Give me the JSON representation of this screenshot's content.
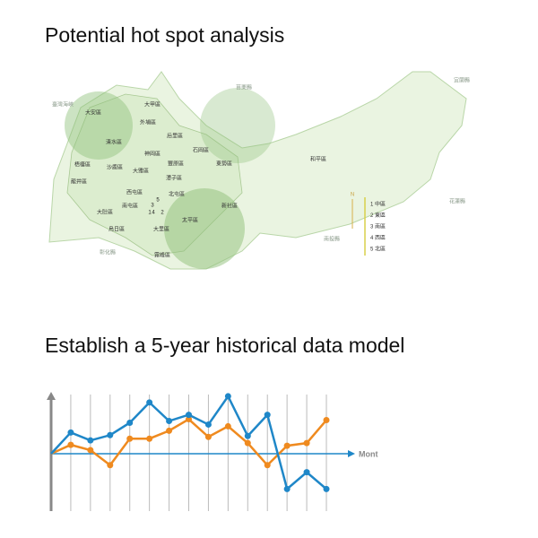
{
  "heading_map": "Potential hot spot analysis",
  "heading_chart": "Establish a 5-year historical data model",
  "map": {
    "districts": [
      "大甲區",
      "外埔區",
      "大安區",
      "后里區",
      "清水區",
      "神岡區",
      "梧棲區",
      "沙鹿區",
      "大雅區",
      "豐原區",
      "石岡區",
      "東勢區",
      "潭子區",
      "龍井區",
      "西屯區",
      "北屯區",
      "大肚區",
      "南屯區",
      "烏日區",
      "大里區",
      "太平區",
      "霧峰區",
      "新社區",
      "和平區"
    ],
    "neighbors": [
      "臺灣海峽",
      "苗栗縣",
      "宜蘭縣",
      "花蓮縣",
      "南投縣",
      "彰化縣"
    ],
    "numbers": [
      "1",
      "2",
      "3",
      "4",
      "5"
    ],
    "compass": "N",
    "legend": [
      "1 中區",
      "2 東區",
      "3 南區",
      "4 西區",
      "5 北區"
    ]
  },
  "chart_data": {
    "type": "line",
    "categories": [
      null,
      null,
      null,
      null,
      null,
      null,
      null,
      null,
      null,
      null,
      null,
      null,
      null,
      null,
      null
    ],
    "x_label": "Mont",
    "ylim": [
      -6.5,
      7
    ],
    "grid": true,
    "series": [
      {
        "name": null,
        "color": "#1f87c8",
        "values": [
          0,
          2.4,
          1.5,
          2.1,
          3.5,
          5.8,
          3.7,
          4.4,
          3.3,
          6.5,
          2,
          4.4,
          -4,
          -2.1,
          -4
        ]
      },
      {
        "name": null,
        "color": "#ef8a1f",
        "values": [
          0,
          1,
          0.4,
          -1.3,
          1.7,
          1.7,
          2.6,
          3.9,
          1.9,
          3.1,
          1.2,
          -1.3,
          0.9,
          1.2,
          3.8
        ]
      }
    ]
  }
}
